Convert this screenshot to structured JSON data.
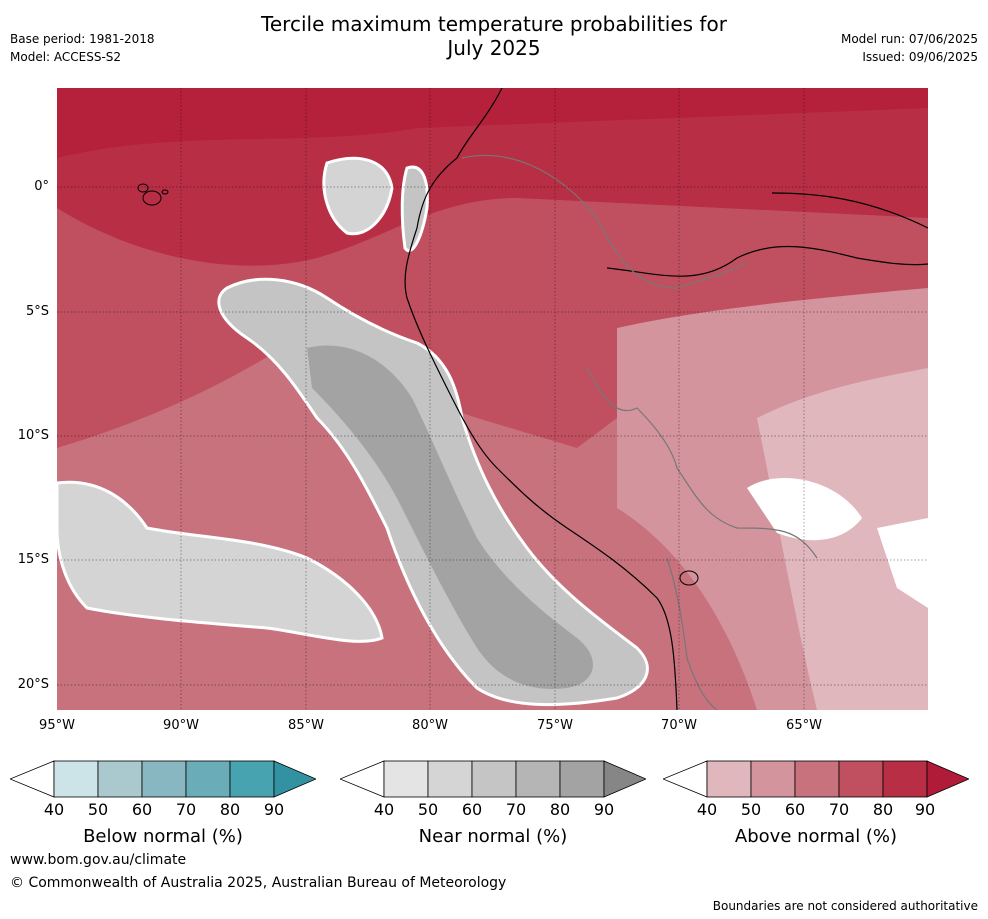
{
  "header": {
    "title_line1": "Tercile maximum temperature probabilities for",
    "title_line2": "July 2025",
    "base_period": "Base period: 1981-2018",
    "model": "Model: ACCESS-S2",
    "model_run": "Model run: 07/06/2025",
    "issued": "Issued: 09/06/2025"
  },
  "map": {
    "latitude_labels": [
      "0°",
      "5°S",
      "10°S",
      "15°S",
      "20°S"
    ],
    "longitude_labels": [
      "95°W",
      "90°W",
      "85°W",
      "80°W",
      "75°W",
      "70°W",
      "65°W"
    ],
    "colors": {
      "ocean_base": "#b5203a",
      "above_40": "#e0b7bd",
      "above_50": "#d3949d",
      "above_60": "#c8727e",
      "above_70": "#c05060",
      "above_80": "#b82e44",
      "near_40": "#e3e3e3",
      "near_50": "#d4d4d4",
      "near_60": "#c4c4c4",
      "near_70": "#b4b4b4",
      "near_80": "#a3a3a3",
      "near_90": "#8c8c8c"
    }
  },
  "colorbars": [
    {
      "title": "Below normal (%)",
      "ticks": [
        "40",
        "50",
        "60",
        "70",
        "80",
        "90"
      ],
      "colors": [
        "#ffffff",
        "#cce3e8",
        "#a9c9cf",
        "#89b7c1",
        "#6aadb8",
        "#48a3b0",
        "#3292a1"
      ]
    },
    {
      "title": "Near normal (%)",
      "ticks": [
        "40",
        "50",
        "60",
        "70",
        "80",
        "90"
      ],
      "colors": [
        "#ffffff",
        "#e4e4e4",
        "#d5d5d5",
        "#c5c5c5",
        "#b5b5b5",
        "#a3a3a3",
        "#868686"
      ]
    },
    {
      "title": "Above normal (%)",
      "ticks": [
        "40",
        "50",
        "60",
        "70",
        "80",
        "90"
      ],
      "colors": [
        "#ffffff",
        "#e0b7bd",
        "#d3949d",
        "#c8727e",
        "#c05060",
        "#b82e44",
        "#b01c38"
      ]
    }
  ],
  "footer": {
    "url": "www.bom.gov.au/climate",
    "copyright": "© Commonwealth of Australia 2025, Australian Bureau of Meteorology",
    "note": "Boundaries are not considered authoritative"
  }
}
